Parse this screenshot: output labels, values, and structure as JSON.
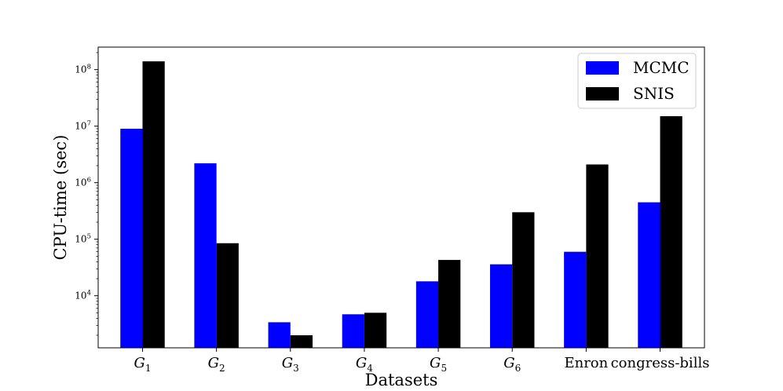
{
  "chart_data": {
    "type": "bar",
    "title": "",
    "xlabel": "Datasets",
    "ylabel": "CPU-time (sec)",
    "yscale": "log",
    "ylim": [
      1200,
      250000000
    ],
    "yticks": [
      {
        "value": 10000,
        "base": "10",
        "exp": "4"
      },
      {
        "value": 100000,
        "base": "10",
        "exp": "5"
      },
      {
        "value": 1000000,
        "base": "10",
        "exp": "6"
      },
      {
        "value": 10000000,
        "base": "10",
        "exp": "7"
      },
      {
        "value": 100000000,
        "base": "10",
        "exp": "8"
      }
    ],
    "categories": [
      {
        "base": "G",
        "sub": "1"
      },
      {
        "base": "G",
        "sub": "2"
      },
      {
        "base": "G",
        "sub": "3"
      },
      {
        "base": "G",
        "sub": "4"
      },
      {
        "base": "G",
        "sub": "5"
      },
      {
        "base": "G",
        "sub": "6"
      },
      {
        "base": "Enron",
        "sub": ""
      },
      {
        "base": "congress-bills",
        "sub": ""
      }
    ],
    "series": [
      {
        "name": "MCMC",
        "color": "#0000ff",
        "values": [
          9000000,
          2200000,
          3400,
          4700,
          18000,
          36000,
          60000,
          450000
        ]
      },
      {
        "name": "SNIS",
        "color": "#000000",
        "values": [
          140000000,
          85000,
          2000,
          5000,
          43000,
          300000,
          2100000,
          15000000
        ]
      }
    ],
    "grid": false,
    "legend": "top-right"
  }
}
